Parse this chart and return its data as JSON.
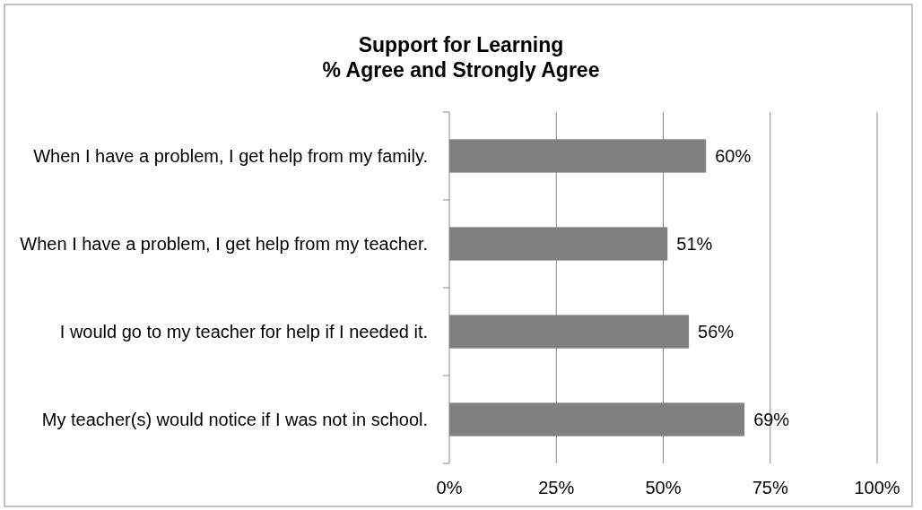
{
  "chart_data": {
    "type": "bar",
    "orientation": "horizontal",
    "title": "Support for Learning\n% Agree and Strongly Agree",
    "categories": [
      "When I have a problem, I get help from my family.",
      "When I have a problem, I get help from my teacher.",
      "I would go to my teacher for help if I needed it.",
      "My teacher(s) would notice if I was not in school."
    ],
    "values": [
      60,
      51,
      56,
      69
    ],
    "color": "#808080",
    "value_labels": [
      "60%",
      "51%",
      "56%",
      "69%"
    ],
    "xlim": [
      0,
      100
    ],
    "xticks": [
      {
        "value": 0,
        "label": "0%"
      },
      {
        "value": 25,
        "label": "25%"
      },
      {
        "value": 50,
        "label": "50%"
      },
      {
        "value": 75,
        "label": "75%"
      },
      {
        "value": 100,
        "label": "100%"
      }
    ],
    "grid": "x"
  }
}
